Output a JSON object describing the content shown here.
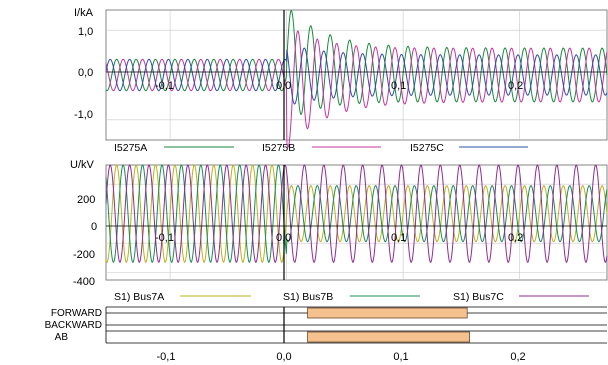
{
  "current_panel": {
    "unit": "I/kA",
    "y_ticks": [
      "1,0",
      "0,0",
      "-1,0"
    ],
    "x_ticks": [
      "-0,1",
      "0,0",
      "0,1",
      "0,2"
    ],
    "legend": [
      {
        "label": "I5275A",
        "color": "#1b8a3c"
      },
      {
        "label": "I5275B",
        "color": "#c7349f"
      },
      {
        "label": "I5275C",
        "color": "#2f4fa8"
      }
    ]
  },
  "voltage_panel": {
    "unit": "U/kV",
    "y_ticks": [
      "200",
      "0",
      "-200",
      "-400"
    ],
    "x_ticks": [
      "-0,1",
      "0,0",
      "0,1",
      "0,2"
    ],
    "legend": [
      {
        "label": "S1) Bus7A",
        "color": "#b9b21d"
      },
      {
        "label": "S1) Bus7B",
        "color": "#1b8a55"
      },
      {
        "label": "S1) Bus7C",
        "color": "#8e2c93"
      }
    ]
  },
  "binary_panel": {
    "rows": [
      "FORWARD",
      "BACKWARD",
      "AB"
    ],
    "bar_color": "#f5c18e",
    "x_ticks": [
      "-0,1",
      "0,0",
      "0,1",
      "0,2"
    ]
  },
  "chart_data": [
    {
      "type": "line",
      "ylabel": "I/kA",
      "xlim": [
        -0.155,
        0.275
      ],
      "ylim": [
        -1.45,
        1.45
      ],
      "x_ticks": [
        -0.1,
        0.0,
        0.1,
        0.2
      ],
      "y_ticks": [
        1.0,
        0.0,
        -1.0
      ],
      "series": [
        {
          "name": "I5275A",
          "pre_fault_peak": 0.35,
          "fault_peak": 1.3,
          "post_fault_peak": 0.6
        },
        {
          "name": "I5275B",
          "pre_fault_peak": 0.35,
          "fault_peak": 1.4,
          "post_fault_peak": 0.6
        },
        {
          "name": "I5275C",
          "pre_fault_peak": 0.35,
          "fault_peak": 0.7,
          "post_fault_peak": 0.45
        }
      ],
      "fault_time": 0.0,
      "frequency_hz": 60
    },
    {
      "type": "line",
      "ylabel": "U/kV",
      "xlim": [
        -0.155,
        0.275
      ],
      "ylim": [
        -450,
        330
      ],
      "x_ticks": [
        -0.1,
        0.0,
        0.1,
        0.2
      ],
      "y_ticks": [
        200,
        0,
        -200,
        -400
      ],
      "series": [
        {
          "name": "S1) Bus7A",
          "pre_fault_peak": 330,
          "post_fault_peak": 190
        },
        {
          "name": "S1) Bus7B",
          "pre_fault_peak": 330,
          "post_fault_peak": 190
        },
        {
          "name": "S1) Bus7C",
          "pre_fault_peak": 330,
          "post_fault_peak": 330
        }
      ],
      "fault_time": 0.0,
      "frequency_hz": 60
    },
    {
      "type": "timeline",
      "x_ticks": [
        -0.1,
        0.0,
        0.1,
        0.2
      ],
      "rows": [
        "FORWARD",
        "BACKWARD",
        "AB"
      ],
      "bars": [
        {
          "row": "FORWARD",
          "start": 0.018,
          "end": 0.155
        },
        {
          "row": "AB",
          "start": 0.018,
          "end": 0.157
        }
      ]
    }
  ]
}
